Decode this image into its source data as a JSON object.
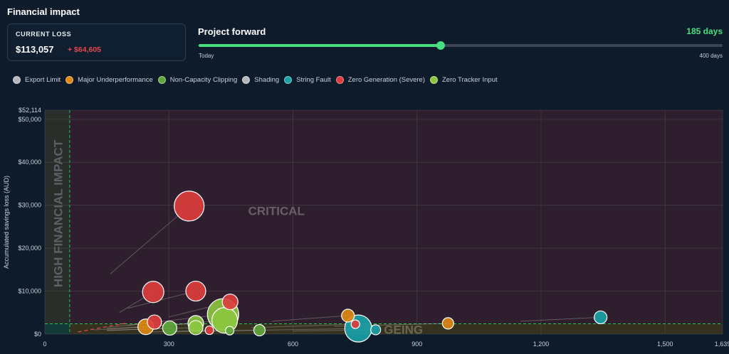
{
  "header": {
    "title": "Financial impact"
  },
  "current_loss": {
    "label": "CURRENT LOSS",
    "value": "$113,057",
    "delta": "+ $64,605"
  },
  "project_forward": {
    "title": "Project forward",
    "days_label": "185 days",
    "min_label": "Today",
    "max_label": "400 days",
    "value": 185,
    "max": 400
  },
  "colors": {
    "accent": "#4ade80",
    "loss": "#e5484d"
  },
  "legend": [
    {
      "name": "Export Limit",
      "color": "#b4b8bd"
    },
    {
      "name": "Major Underperformance",
      "color": "#e08a14"
    },
    {
      "name": "Non-Capacity Clipping",
      "color": "#5fa83c"
    },
    {
      "name": "Shading",
      "color": "#b4b8bd"
    },
    {
      "name": "String Fault",
      "color": "#1aa3a8"
    },
    {
      "name": "Zero Generation (Severe)",
      "color": "#e03c3c"
    },
    {
      "name": "Zero Tracker Input",
      "color": "#8cc63f"
    }
  ],
  "chart_data": {
    "type": "scatter",
    "ylabel": "Accumulated savings loss (AUD)",
    "xlim": [
      0,
      1639
    ],
    "ylim": [
      0,
      52114
    ],
    "x_ticks": [
      0,
      300,
      600,
      900,
      1200,
      1500,
      1639
    ],
    "x_tick_labels": [
      "0",
      "300",
      "600",
      "900",
      "1,200",
      "1,500",
      "1,639"
    ],
    "y_ticks": [
      0,
      10000,
      20000,
      30000,
      40000,
      50000,
      52114
    ],
    "y_tick_labels": [
      "$0",
      "$10,000",
      "$20,000",
      "$30,000",
      "$40,000",
      "$50,000",
      "$52,114"
    ],
    "x_threshold": 60,
    "y_threshold": 2400,
    "quadrant_labels": {
      "top_left": "HIGH FINANCIAL IMPACT",
      "top_right": "CRITICAL",
      "bottom_right": "GEING"
    },
    "grid": true,
    "points": [
      {
        "category": "Zero Generation (Severe)",
        "x": 349,
        "y": 29800,
        "r": 21,
        "from": [
          158,
          14000
        ]
      },
      {
        "category": "Zero Generation (Severe)",
        "x": 262,
        "y": 9800,
        "r": 15,
        "from": [
          180,
          5000
        ]
      },
      {
        "category": "Zero Generation (Severe)",
        "x": 365,
        "y": 10000,
        "r": 14,
        "from": [
          200,
          6000
        ]
      },
      {
        "category": "Zero Generation (Severe)",
        "x": 448,
        "y": 7500,
        "r": 11,
        "from": [
          300,
          4000
        ]
      },
      {
        "category": "Zero Generation (Severe)",
        "x": 265,
        "y": 2800,
        "r": 10,
        "from": [
          150,
          1500
        ]
      },
      {
        "category": "Zero Generation (Severe)",
        "x": 398,
        "y": 900,
        "r": 6,
        "from": [
          250,
          500
        ]
      },
      {
        "category": "Zero Generation (Severe)",
        "x": 751,
        "y": 2300,
        "r": 6,
        "from": [
          500,
          1500
        ]
      },
      {
        "category": "Zero Tracker Input",
        "x": 431,
        "y": 4600,
        "r": 22,
        "from": [
          200,
          2000
        ]
      },
      {
        "category": "Zero Tracker Input",
        "x": 435,
        "y": 3200,
        "r": 18,
        "from": [
          220,
          1500
        ]
      },
      {
        "category": "Zero Tracker Input",
        "x": 365,
        "y": 2500,
        "r": 11,
        "from": [
          150,
          1200
        ]
      },
      {
        "category": "Zero Tracker Input",
        "x": 365,
        "y": 1500,
        "r": 10,
        "from": [
          150,
          900
        ]
      },
      {
        "category": "Non-Capacity Clipping",
        "x": 302,
        "y": 1400,
        "r": 10,
        "from": [
          150,
          800
        ]
      },
      {
        "category": "Non-Capacity Clipping",
        "x": 519,
        "y": 900,
        "r": 8,
        "from": [
          350,
          600
        ]
      },
      {
        "category": "Non-Capacity Clipping",
        "x": 447,
        "y": 800,
        "r": 6,
        "from": [
          300,
          500
        ]
      },
      {
        "category": "Major Underperformance",
        "x": 244,
        "y": 1700,
        "r": 11,
        "from": [
          120,
          1000
        ]
      },
      {
        "category": "Major Underperformance",
        "x": 733,
        "y": 4300,
        "r": 9,
        "from": [
          550,
          3000
        ]
      },
      {
        "category": "Major Underperformance",
        "x": 975,
        "y": 2500,
        "r": 8,
        "from": [
          700,
          1800
        ]
      },
      {
        "category": "String Fault",
        "x": 758,
        "y": 1300,
        "r": 19,
        "from": [
          450,
          800
        ]
      },
      {
        "category": "String Fault",
        "x": 1344,
        "y": 3900,
        "r": 9,
        "from": [
          1150,
          3000
        ]
      },
      {
        "category": "String Fault",
        "x": 800,
        "y": 1000,
        "r": 7,
        "from": [
          600,
          700
        ]
      }
    ],
    "projection_line": {
      "from": [
        80,
        500
      ],
      "to": [
        200,
        2600
      ]
    }
  }
}
